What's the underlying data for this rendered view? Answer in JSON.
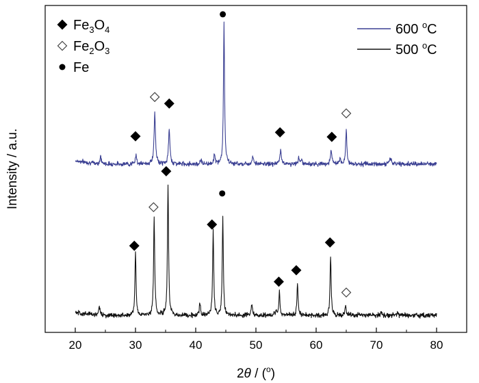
{
  "chart_data": {
    "type": "line",
    "title": "",
    "xlabel": "2θ / (°)",
    "xlabel_parts": {
      "var": "2",
      "theta": "θ",
      "rest": " / (",
      "unit": "o",
      "close": ")"
    },
    "ylabel": "Intensity / a.u.",
    "xlim": [
      15,
      85
    ],
    "xticks": [
      20,
      30,
      40,
      50,
      60,
      70,
      80
    ],
    "xtick_labels": [
      "20",
      "30",
      "40",
      "50",
      "60",
      "70",
      "80"
    ],
    "y_units": "offset intensity (0 = bottom of frame, 100 = top)",
    "ylim": [
      0,
      100
    ],
    "series": [
      {
        "name": "600 °C",
        "label": "600 ",
        "label_sup": "o",
        "label_unit": "C",
        "color": "#3a3f92",
        "baseline": 51.5,
        "noise": 0.55,
        "x_range": [
          20,
          80
        ],
        "peaks": [
          {
            "x": 24.2,
            "h": 2.2,
            "w": 0.15
          },
          {
            "x": 30.1,
            "h": 3.0,
            "w": 0.12
          },
          {
            "x": 33.2,
            "h": 15.5,
            "w": 0.14
          },
          {
            "x": 35.6,
            "h": 10.5,
            "w": 0.14
          },
          {
            "x": 40.9,
            "h": 1.5,
            "w": 0.12
          },
          {
            "x": 43.1,
            "h": 3.0,
            "w": 0.12
          },
          {
            "x": 44.7,
            "h": 43.0,
            "w": 0.11
          },
          {
            "x": 49.5,
            "h": 2.4,
            "w": 0.15
          },
          {
            "x": 54.1,
            "h": 4.3,
            "w": 0.14
          },
          {
            "x": 57.1,
            "h": 2.0,
            "w": 0.12
          },
          {
            "x": 57.6,
            "h": 1.3,
            "w": 0.12
          },
          {
            "x": 62.5,
            "h": 4.2,
            "w": 0.14
          },
          {
            "x": 64.0,
            "h": 1.2,
            "w": 0.12
          },
          {
            "x": 65.0,
            "h": 10.3,
            "w": 0.12
          },
          {
            "x": 72.3,
            "h": 2.0,
            "w": 0.15
          }
        ]
      },
      {
        "name": "500 °C",
        "label": "500 ",
        "label_sup": "o",
        "label_unit": "C",
        "color": "#111111",
        "baseline": 5.2,
        "noise": 0.6,
        "x_range": [
          20,
          80
        ],
        "peaks": [
          {
            "x": 24.0,
            "h": 3.0,
            "w": 0.12
          },
          {
            "x": 30.0,
            "h": 19.5,
            "w": 0.11
          },
          {
            "x": 33.1,
            "h": 30.5,
            "w": 0.11
          },
          {
            "x": 35.4,
            "h": 40.2,
            "w": 0.11
          },
          {
            "x": 40.7,
            "h": 4.0,
            "w": 0.11
          },
          {
            "x": 42.9,
            "h": 25.7,
            "w": 0.11
          },
          {
            "x": 44.5,
            "h": 29.6,
            "w": 0.11
          },
          {
            "x": 49.3,
            "h": 3.4,
            "w": 0.12
          },
          {
            "x": 53.4,
            "h": 1.5,
            "w": 0.12
          },
          {
            "x": 53.9,
            "h": 7.5,
            "w": 0.11
          },
          {
            "x": 56.9,
            "h": 10.3,
            "w": 0.11
          },
          {
            "x": 62.4,
            "h": 17.8,
            "w": 0.11
          },
          {
            "x": 64.9,
            "h": 3.0,
            "w": 0.12
          },
          {
            "x": 70.8,
            "h": 1.0,
            "w": 0.15
          },
          {
            "x": 73.5,
            "h": 0.8,
            "w": 0.15
          }
        ]
      }
    ],
    "markers": [
      {
        "phase": "Fe3O4",
        "x": 30.0,
        "y": 60.0
      },
      {
        "phase": "Fe2O3",
        "x": 33.2,
        "y": 72.0
      },
      {
        "phase": "Fe3O4",
        "x": 35.6,
        "y": 70.0
      },
      {
        "phase": "Fe",
        "x": 44.5,
        "y": 97.3
      },
      {
        "phase": "Fe3O4",
        "x": 54.0,
        "y": 61.2
      },
      {
        "phase": "Fe3O4",
        "x": 62.6,
        "y": 59.8
      },
      {
        "phase": "Fe2O3",
        "x": 65.0,
        "y": 67.0
      },
      {
        "phase": "Fe3O4",
        "x": 29.8,
        "y": 26.5
      },
      {
        "phase": "Fe2O3",
        "x": 33.0,
        "y": 38.3
      },
      {
        "phase": "Fe3O4",
        "x": 35.1,
        "y": 49.3
      },
      {
        "phase": "Fe3O4",
        "x": 42.7,
        "y": 33.0
      },
      {
        "phase": "Fe",
        "x": 44.4,
        "y": 42.5
      },
      {
        "phase": "Fe3O4",
        "x": 53.8,
        "y": 15.5
      },
      {
        "phase": "Fe3O4",
        "x": 56.7,
        "y": 19.0
      },
      {
        "phase": "Fe3O4",
        "x": 62.3,
        "y": 27.5
      },
      {
        "phase": "Fe2O3",
        "x": 65.0,
        "y": 12.2
      }
    ],
    "legend_phases": [
      {
        "phase": "Fe3O4",
        "text": "Fe",
        "sub1": "3",
        "mid": "O",
        "sub2": "4",
        "symbol": "filled-diamond"
      },
      {
        "phase": "Fe2O3",
        "text": "Fe",
        "sub1": "2",
        "mid": "O",
        "sub2": "3",
        "symbol": "open-diamond"
      },
      {
        "phase": "Fe",
        "text": "Fe",
        "sub1": "",
        "mid": "",
        "sub2": "",
        "symbol": "filled-circle"
      }
    ],
    "legend_placement": {
      "phases": "top-left",
      "series": "top-right"
    },
    "grid": false
  }
}
